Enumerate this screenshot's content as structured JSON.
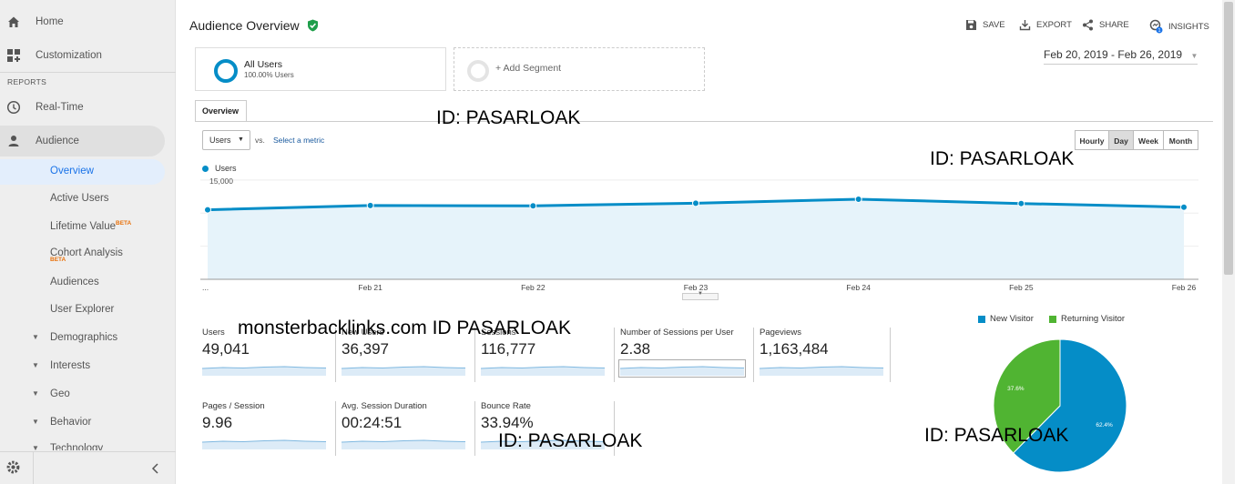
{
  "sidebar": {
    "home": "Home",
    "customization": "Customization",
    "reports_header": "REPORTS",
    "realtime": "Real-Time",
    "audience": "Audience",
    "items": {
      "overview": "Overview",
      "active_users": "Active Users",
      "lifetime_value": "Lifetime Value",
      "cohort_analysis": "Cohort Analysis",
      "audiences": "Audiences",
      "user_explorer": "User Explorer",
      "demographics": "Demographics",
      "interests": "Interests",
      "geo": "Geo",
      "behavior": "Behavior",
      "technology": "Technology"
    },
    "beta": "BETA"
  },
  "header": {
    "title": "Audience Overview",
    "save": "SAVE",
    "export": "EXPORT",
    "share": "SHARE",
    "insights": "INSIGHTS",
    "insights_badge": "1"
  },
  "segments": {
    "all_users_title": "All Users",
    "all_users_pct": "100.00% Users",
    "add_segment": "+ Add Segment"
  },
  "date_range": "Feb 20, 2019 - Feb 26, 2019",
  "tabs": {
    "overview": "Overview"
  },
  "controls": {
    "metric": "Users",
    "vs": "vs.",
    "select_metric": "Select a metric",
    "granularity": [
      "Hourly",
      "Day",
      "Week",
      "Month"
    ],
    "selected_granularity": "Day"
  },
  "chart_data": [
    {
      "type": "area",
      "series": [
        {
          "name": "Users",
          "values": [
            10500,
            11150,
            11100,
            11500,
            12100,
            11450,
            10900
          ]
        }
      ],
      "x": [
        "...",
        "Feb 21",
        "Feb 22",
        "Feb 23",
        "Feb 24",
        "Feb 25",
        "Feb 26"
      ],
      "yticks": [
        "15,000",
        "10,000",
        "5,000"
      ],
      "ylim": [
        0,
        15000
      ],
      "color": "#058dc7",
      "fill": "#e6f3fa",
      "grid": true
    },
    {
      "type": "pie",
      "categories": [
        "New Visitor",
        "Returning Visitor"
      ],
      "values": [
        62.4,
        37.6
      ],
      "labels": [
        "62.4%",
        "37.6%"
      ],
      "colors": [
        "#058dc7",
        "#50b432"
      ],
      "legend": "top"
    }
  ],
  "metrics": [
    {
      "name": "Users",
      "value": "49,041"
    },
    {
      "name": "New Users",
      "value": "36,397"
    },
    {
      "name": "Sessions",
      "value": "116,777"
    },
    {
      "name": "Number of Sessions per User",
      "value": "2.38"
    },
    {
      "name": "Pageviews",
      "value": "1,163,484"
    },
    {
      "name": "Pages / Session",
      "value": "9.96"
    },
    {
      "name": "Avg. Session Duration",
      "value": "00:24:51"
    },
    {
      "name": "Bounce Rate",
      "value": "33.94%"
    }
  ],
  "watermarks": [
    "ID: PASARLOAK",
    "ID: PASARLOAK",
    "monsterbacklinks.com ID PASARLOAK",
    "ID: PASARLOAK",
    "ID: PASARLOAK"
  ]
}
